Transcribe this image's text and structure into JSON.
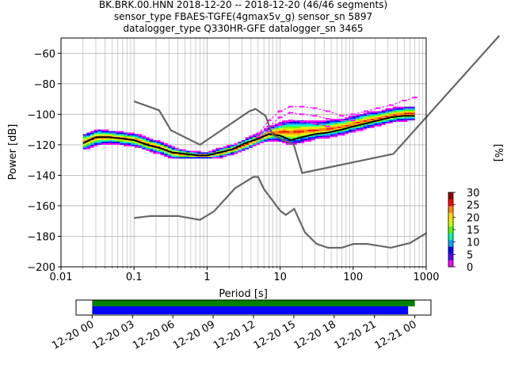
{
  "chart_data": {
    "type": "heatmap",
    "title_lines": [
      "BK.BRK.00.HNN   2018-12-20 -- 2018-12-20  (46/46 segments)",
      "sensor_type FBAES-TGFE(4gmax5v_g) sensor_sn 5897",
      "datalogger_type Q330HR-GFE datalogger_sn 3465"
    ],
    "xlabel": "Period [s]",
    "ylabel": "Power [dB]",
    "xscale": "log",
    "xlim": [
      0.01,
      1000
    ],
    "ylim": [
      -200,
      -50
    ],
    "xticks": [
      {
        "v": 0.01,
        "label": "0.01"
      },
      {
        "v": 0.1,
        "label": "0.1"
      },
      {
        "v": 1,
        "label": "1"
      },
      {
        "v": 10,
        "label": "10"
      },
      {
        "v": 100,
        "label": "100"
      },
      {
        "v": 1000,
        "label": "1000"
      }
    ],
    "yticks": [
      {
        "v": -60,
        "label": "−60"
      },
      {
        "v": -80,
        "label": "−80"
      },
      {
        "v": -100,
        "label": "−100"
      },
      {
        "v": -120,
        "label": "−120"
      },
      {
        "v": -140,
        "label": "−140"
      },
      {
        "v": -160,
        "label": "−160"
      },
      {
        "v": -180,
        "label": "−180"
      },
      {
        "v": -200,
        "label": "−200"
      }
    ],
    "grid": true,
    "colorbar": {
      "label": "[%]",
      "range": [
        0,
        30
      ],
      "ticks": [
        {
          "v": 0,
          "label": "0"
        },
        {
          "v": 5,
          "label": "5"
        },
        {
          "v": 10,
          "label": "10"
        },
        {
          "v": 15,
          "label": "15"
        },
        {
          "v": 20,
          "label": "20"
        },
        {
          "v": 25,
          "label": "25"
        },
        {
          "v": 30,
          "label": "30"
        }
      ],
      "colors": [
        "#ffffff",
        "#ff00ff",
        "#5500ff",
        "#0000ff",
        "#00aaff",
        "#00ffaa",
        "#55ff00",
        "#ccff00",
        "#ffdd00",
        "#ff8800",
        "#ff0000",
        "#990000"
      ]
    },
    "series": [
      {
        "role": "mode",
        "color": "#000000",
        "period": [
          0.02,
          0.03,
          0.045,
          0.07,
          0.1,
          0.15,
          0.22,
          0.33,
          0.5,
          0.75,
          1.0,
          1.5,
          2.2,
          3.3,
          5,
          7,
          10,
          14,
          20,
          30,
          45,
          70,
          100,
          150,
          220,
          330,
          500,
          700
        ],
        "power": [
          -119,
          -115,
          -115,
          -116,
          -117,
          -120,
          -122,
          -125,
          -126,
          -127,
          -127,
          -125,
          -123,
          -119,
          -116,
          -113,
          -114,
          -117,
          -115,
          -113,
          -112,
          -110,
          -108,
          -106,
          -104,
          -102,
          -101,
          -101
        ]
      },
      {
        "role": "noise_model_high",
        "color": "#666666",
        "period": [
          0.1,
          0.22,
          0.32,
          0.8,
          3.8,
          4.6,
          6.3,
          7.9,
          15.4,
          20,
          354.8,
          10000
        ],
        "power": [
          -91.5,
          -97.4,
          -110.5,
          -120,
          -98,
          -96.5,
          -101,
          -113.5,
          -120,
          -138.5,
          -126,
          -48.5
        ]
      },
      {
        "role": "noise_model_low",
        "color": "#666666",
        "period": [
          0.1,
          0.17,
          0.4,
          0.8,
          1.24,
          2.4,
          4.3,
          5,
          6,
          10,
          12,
          15.6,
          21.9,
          31.6,
          45,
          70,
          101,
          154,
          328,
          600,
          1000
        ],
        "power": [
          -168,
          -166.7,
          -166.7,
          -169.2,
          -163.7,
          -148.6,
          -141.1,
          -141.1,
          -149,
          -163.2,
          -166,
          -162,
          -177.5,
          -185,
          -187.5,
          -187.5,
          -185,
          -185,
          -187.5,
          -184.4,
          -178
        ]
      }
    ],
    "psd_bands": [
      {
        "period": [
          0.02,
          0.03,
          0.045,
          0.07,
          0.1,
          0.15,
          0.22,
          0.33,
          0.5,
          0.75,
          1.0,
          1.5,
          2.2,
          3.3,
          5,
          7,
          10,
          14,
          20,
          30,
          45,
          70,
          100,
          150,
          220,
          330,
          500,
          700
        ],
        "upper": [
          -113,
          -110,
          -111,
          -112,
          -113,
          -116,
          -118,
          -122,
          -124,
          -125,
          -125,
          -122,
          -120,
          -116,
          -112,
          -108,
          -105,
          -104,
          -104,
          -105,
          -104,
          -103,
          -101,
          -99,
          -98,
          -96,
          -95,
          -95
        ],
        "lower": [
          -123,
          -120,
          -119,
          -120,
          -121,
          -124,
          -126,
          -129,
          -129,
          -129,
          -129,
          -128,
          -126,
          -123,
          -119,
          -117,
          -118,
          -120,
          -118,
          -116,
          -115,
          -113,
          -111,
          -109,
          -107,
          -105,
          -104,
          -104
        ]
      }
    ],
    "outlier_traces": [
      {
        "period": [
          5,
          7,
          10,
          14,
          20,
          30,
          45,
          70,
          100,
          150,
          220,
          330,
          500,
          700
        ],
        "power": [
          -113,
          -104,
          -98,
          -95,
          -95,
          -96,
          -98,
          -101,
          -100,
          -98,
          -96,
          -94,
          -91,
          -89
        ]
      },
      {
        "period": [
          5,
          7,
          10,
          14,
          20,
          30,
          45,
          70,
          100
        ],
        "power": [
          -115,
          -108,
          -102,
          -99,
          -100,
          -101,
          -103,
          -104,
          -104
        ]
      },
      {
        "period": [
          5,
          7,
          10,
          14,
          20,
          30,
          45
        ],
        "power": [
          -116,
          -111,
          -107,
          -104,
          -105,
          -106,
          -108
        ]
      }
    ],
    "time_axis": {
      "ticks": [
        {
          "h": 0,
          "label": "12-20 00"
        },
        {
          "h": 3,
          "label": "12-20 03"
        },
        {
          "h": 6,
          "label": "12-20 06"
        },
        {
          "h": 9,
          "label": "12-20 09"
        },
        {
          "h": 12,
          "label": "12-20 12"
        },
        {
          "h": 15,
          "label": "12-20 15"
        },
        {
          "h": 18,
          "label": "12-20 18"
        },
        {
          "h": 21,
          "label": "12-20 21"
        },
        {
          "h": 24,
          "label": "12-21 00"
        }
      ],
      "range_hours": [
        -1.2,
        25.2
      ],
      "data_coverage_hours": [
        0,
        24.0
      ],
      "psd_coverage_hours": [
        0,
        23.5
      ],
      "data_color": "#008000",
      "psd_color": "#0000ff"
    }
  }
}
